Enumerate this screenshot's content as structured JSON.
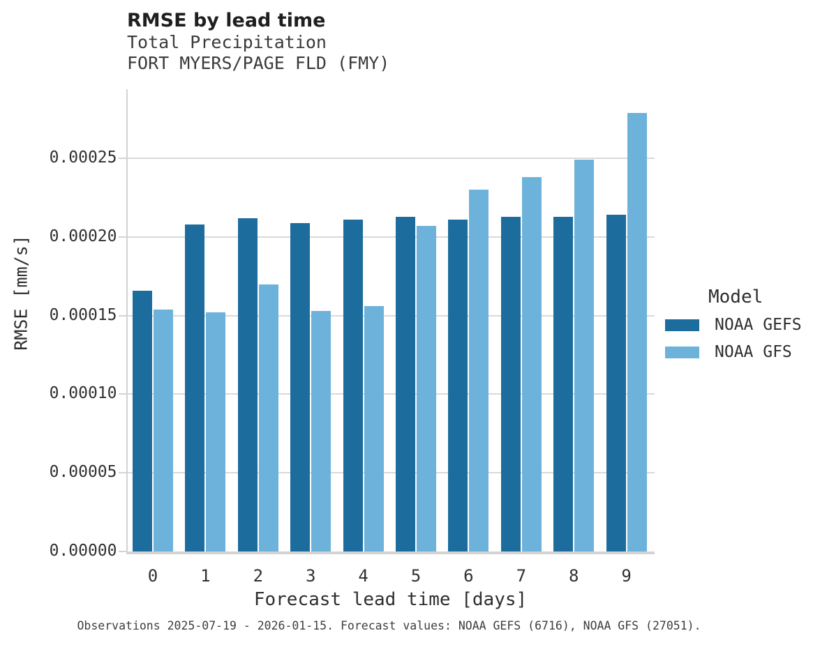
{
  "header": {
    "title": "RMSE by lead time",
    "subtitle1": "Total Precipitation",
    "subtitle2": "FORT MYERS/PAGE FLD (FMY)"
  },
  "chart_data": {
    "type": "bar",
    "title": "RMSE by lead time",
    "subtitle": [
      "Total Precipitation",
      "FORT MYERS/PAGE FLD (FMY)"
    ],
    "xlabel": "Forecast lead time [days]",
    "ylabel": "RMSE [mm/s]",
    "categories": [
      "0",
      "1",
      "2",
      "3",
      "4",
      "5",
      "6",
      "7",
      "8",
      "9"
    ],
    "series": [
      {
        "name": "NOAA GEFS",
        "color": "#1c6d9e",
        "values": [
          0.000166,
          0.000208,
          0.000212,
          0.000209,
          0.000211,
          0.000213,
          0.000211,
          0.000213,
          0.000213,
          0.000214
        ]
      },
      {
        "name": "NOAA GFS",
        "color": "#6db2da",
        "values": [
          0.000154,
          0.000152,
          0.00017,
          0.000153,
          0.000156,
          0.000207,
          0.00023,
          0.000238,
          0.000249,
          0.000279
        ]
      }
    ],
    "ylim": [
      0,
      0.000294
    ],
    "yticks": {
      "values": [
        0,
        5e-05,
        0.0001,
        0.00015,
        0.0002,
        0.00025
      ],
      "labels": [
        "0.00000",
        "0.00005",
        "0.00010",
        "0.00015",
        "0.00020",
        "0.00025"
      ]
    },
    "legend": {
      "title": "Model",
      "position": "right"
    },
    "grid": true,
    "grid_color": "#d9d9d9"
  },
  "footer": {
    "caption": "Observations 2025-07-19 - 2026-01-15. Forecast values: NOAA GEFS (6716), NOAA GFS (27051)."
  }
}
